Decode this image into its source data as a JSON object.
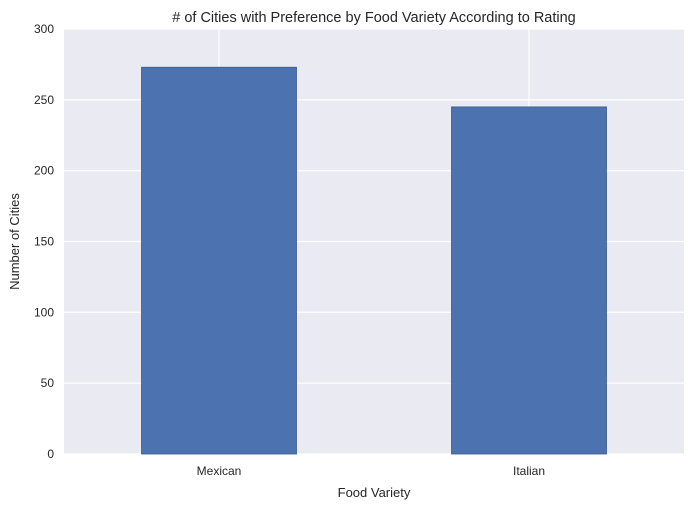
{
  "chart_data": {
    "type": "bar",
    "title": "# of Cities with Preference by Food Variety According to Rating",
    "xlabel": "Food Variety",
    "ylabel": "Number of Cities",
    "categories": [
      "Mexican",
      "Italian"
    ],
    "values": [
      273,
      245
    ],
    "ylim": [
      0,
      300
    ],
    "yticks": [
      0,
      50,
      100,
      150,
      200,
      250,
      300
    ],
    "grid": true,
    "colors": {
      "bar": "#4c72b0",
      "background": "#eaeaf2",
      "grid": "#ffffff"
    }
  }
}
